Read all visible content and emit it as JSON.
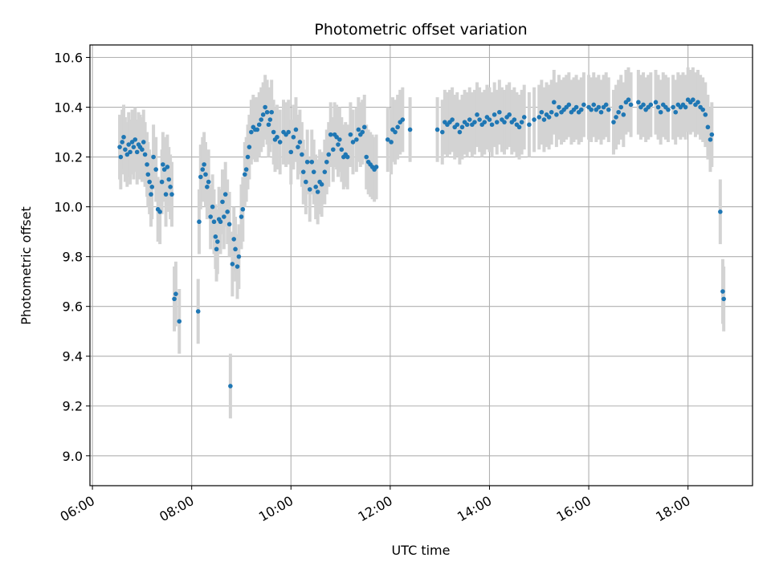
{
  "chart_data": {
    "type": "scatter",
    "title": "Photometric offset variation",
    "xlabel": "UTC time",
    "ylabel": "Photometric offset",
    "x_unit": "hours UTC",
    "xlim": [
      5.95,
      19.3
    ],
    "ylim": [
      8.88,
      10.65
    ],
    "grid": true,
    "legend": "none",
    "x_ticks": [
      {
        "value": 6,
        "label": "06:00"
      },
      {
        "value": 8,
        "label": "08:00"
      },
      {
        "value": 10,
        "label": "10:00"
      },
      {
        "value": 12,
        "label": "12:00"
      },
      {
        "value": 14,
        "label": "14:00"
      },
      {
        "value": 16,
        "label": "16:00"
      },
      {
        "value": 18,
        "label": "18:00"
      }
    ],
    "y_ticks": [
      {
        "value": 9.0,
        "label": "9.0"
      },
      {
        "value": 9.2,
        "label": "9.2"
      },
      {
        "value": 9.4,
        "label": "9.4"
      },
      {
        "value": 9.6,
        "label": "9.6"
      },
      {
        "value": 9.8,
        "label": "9.8"
      },
      {
        "value": 10.0,
        "label": "10.0"
      },
      {
        "value": 10.2,
        "label": "10.2"
      },
      {
        "value": 10.4,
        "label": "10.4"
      },
      {
        "value": 10.6,
        "label": "10.6"
      }
    ],
    "colors": {
      "points": "#1f77b4",
      "errorbars": "#d3d3d3",
      "grid": "#b0b0b0"
    },
    "series": [
      {
        "error": 0.13,
        "points": [
          [
            6.55,
            10.24
          ],
          [
            6.57,
            10.2
          ],
          [
            6.6,
            10.26
          ],
          [
            6.63,
            10.28
          ],
          [
            6.66,
            10.23
          ],
          [
            6.7,
            10.21
          ],
          [
            6.73,
            10.25
          ],
          [
            6.76,
            10.22
          ],
          [
            6.8,
            10.26
          ],
          [
            6.83,
            10.24
          ],
          [
            6.86,
            10.27
          ],
          [
            6.9,
            10.22
          ],
          [
            6.93,
            10.25
          ],
          [
            6.96,
            10.24
          ],
          [
            7.0,
            10.23
          ],
          [
            7.03,
            10.26
          ],
          [
            7.06,
            10.21
          ],
          [
            7.1,
            10.17
          ],
          [
            7.12,
            10.13
          ],
          [
            7.15,
            10.1
          ],
          [
            7.18,
            10.05
          ],
          [
            7.2,
            10.08
          ],
          [
            7.23,
            10.2
          ],
          [
            7.28,
            10.15
          ],
          [
            7.32,
            9.99
          ],
          [
            7.36,
            9.98
          ],
          [
            7.4,
            10.1
          ],
          [
            7.42,
            10.17
          ],
          [
            7.45,
            10.15
          ],
          [
            7.48,
            10.05
          ],
          [
            7.51,
            10.16
          ],
          [
            7.54,
            10.11
          ],
          [
            7.57,
            10.08
          ],
          [
            7.6,
            10.05
          ],
          [
            7.65,
            9.63
          ],
          [
            7.68,
            9.65
          ],
          [
            7.75,
            9.54
          ],
          [
            8.13,
            9.58
          ],
          [
            8.15,
            9.94
          ],
          [
            8.18,
            10.12
          ],
          [
            8.22,
            10.15
          ],
          [
            8.25,
            10.17
          ],
          [
            8.28,
            10.13
          ],
          [
            8.31,
            10.08
          ],
          [
            8.34,
            10.1
          ],
          [
            8.38,
            9.96
          ],
          [
            8.42,
            10.0
          ],
          [
            8.45,
            9.94
          ],
          [
            8.48,
            9.88
          ],
          [
            8.5,
            9.83
          ],
          [
            8.52,
            9.86
          ],
          [
            8.55,
            9.95
          ],
          [
            8.58,
            9.94
          ],
          [
            8.62,
            10.02
          ],
          [
            8.65,
            9.96
          ],
          [
            8.68,
            10.05
          ],
          [
            8.72,
            9.98
          ],
          [
            8.76,
            9.93
          ],
          [
            8.78,
            9.28
          ],
          [
            8.82,
            9.77
          ],
          [
            8.85,
            9.87
          ],
          [
            8.88,
            9.83
          ],
          [
            8.92,
            9.76
          ],
          [
            8.95,
            9.8
          ],
          [
            9.0,
            9.96
          ],
          [
            9.03,
            9.99
          ],
          [
            9.07,
            10.13
          ],
          [
            9.1,
            10.15
          ],
          [
            9.13,
            10.2
          ],
          [
            9.16,
            10.24
          ],
          [
            9.2,
            10.3
          ],
          [
            9.24,
            10.32
          ],
          [
            9.28,
            10.31
          ],
          [
            9.32,
            10.31
          ],
          [
            9.36,
            10.33
          ],
          [
            9.4,
            10.35
          ],
          [
            9.44,
            10.37
          ],
          [
            9.48,
            10.4
          ],
          [
            9.52,
            10.38
          ],
          [
            9.55,
            10.33
          ],
          [
            9.58,
            10.35
          ],
          [
            9.61,
            10.38
          ],
          [
            9.65,
            10.3
          ],
          [
            9.68,
            10.27
          ],
          [
            9.72,
            10.28
          ],
          [
            9.78,
            10.26
          ],
          [
            9.85,
            10.3
          ],
          [
            9.9,
            10.29
          ],
          [
            9.95,
            10.3
          ],
          [
            10.0,
            10.22
          ],
          [
            10.05,
            10.28
          ],
          [
            10.1,
            10.31
          ],
          [
            10.14,
            10.24
          ],
          [
            10.18,
            10.26
          ],
          [
            10.22,
            10.21
          ],
          [
            10.25,
            10.14
          ],
          [
            10.3,
            10.1
          ],
          [
            10.33,
            10.18
          ],
          [
            10.38,
            10.07
          ],
          [
            10.42,
            10.18
          ],
          [
            10.46,
            10.14
          ],
          [
            10.5,
            10.08
          ],
          [
            10.54,
            10.06
          ],
          [
            10.58,
            10.1
          ],
          [
            10.62,
            10.09
          ],
          [
            10.68,
            10.14
          ],
          [
            10.72,
            10.18
          ],
          [
            10.76,
            10.21
          ],
          [
            10.8,
            10.29
          ],
          [
            10.85,
            10.23
          ],
          [
            10.88,
            10.29
          ],
          [
            10.92,
            10.28
          ],
          [
            10.95,
            10.25
          ],
          [
            10.98,
            10.27
          ],
          [
            11.02,
            10.23
          ],
          [
            11.06,
            10.2
          ],
          [
            11.1,
            10.21
          ],
          [
            11.14,
            10.2
          ],
          [
            11.2,
            10.29
          ],
          [
            11.25,
            10.26
          ],
          [
            11.32,
            10.27
          ],
          [
            11.36,
            10.31
          ],
          [
            11.4,
            10.29
          ],
          [
            11.44,
            10.3
          ],
          [
            11.48,
            10.32
          ],
          [
            11.52,
            10.2
          ],
          [
            11.56,
            10.18
          ],
          [
            11.6,
            10.17
          ],
          [
            11.64,
            10.16
          ],
          [
            11.68,
            10.15
          ],
          [
            11.72,
            10.16
          ],
          [
            11.95,
            10.27
          ],
          [
            12.02,
            10.26
          ],
          [
            12.05,
            10.31
          ],
          [
            12.1,
            10.3
          ],
          [
            12.15,
            10.32
          ],
          [
            12.2,
            10.34
          ],
          [
            12.25,
            10.35
          ],
          [
            12.4,
            10.31
          ],
          [
            12.95,
            10.31
          ],
          [
            13.05,
            10.3
          ],
          [
            13.1,
            10.34
          ],
          [
            13.15,
            10.33
          ],
          [
            13.2,
            10.34
          ],
          [
            13.25,
            10.35
          ],
          [
            13.3,
            10.32
          ],
          [
            13.35,
            10.33
          ],
          [
            13.4,
            10.3
          ],
          [
            13.45,
            10.32
          ],
          [
            13.5,
            10.34
          ],
          [
            13.55,
            10.33
          ],
          [
            13.6,
            10.35
          ],
          [
            13.65,
            10.33
          ],
          [
            13.7,
            10.34
          ],
          [
            13.75,
            10.37
          ],
          [
            13.8,
            10.35
          ],
          [
            13.85,
            10.33
          ],
          [
            13.9,
            10.34
          ],
          [
            13.95,
            10.36
          ],
          [
            14.0,
            10.35
          ],
          [
            14.05,
            10.33
          ],
          [
            14.1,
            10.37
          ],
          [
            14.15,
            10.34
          ],
          [
            14.2,
            10.38
          ],
          [
            14.25,
            10.35
          ],
          [
            14.3,
            10.34
          ],
          [
            14.35,
            10.36
          ],
          [
            14.4,
            10.37
          ],
          [
            14.45,
            10.34
          ],
          [
            14.5,
            10.35
          ],
          [
            14.55,
            10.33
          ],
          [
            14.6,
            10.32
          ],
          [
            14.65,
            10.34
          ],
          [
            14.7,
            10.36
          ],
          [
            14.8,
            10.33
          ],
          [
            14.9,
            10.35
          ],
          [
            15.0,
            10.36
          ],
          [
            15.05,
            10.38
          ],
          [
            15.1,
            10.35
          ],
          [
            15.15,
            10.37
          ],
          [
            15.2,
            10.36
          ],
          [
            15.25,
            10.38
          ],
          [
            15.3,
            10.42
          ],
          [
            15.35,
            10.37
          ],
          [
            15.4,
            10.4
          ],
          [
            15.45,
            10.38
          ],
          [
            15.5,
            10.39
          ],
          [
            15.55,
            10.4
          ],
          [
            15.6,
            10.41
          ],
          [
            15.65,
            10.38
          ],
          [
            15.7,
            10.39
          ],
          [
            15.75,
            10.4
          ],
          [
            15.8,
            10.38
          ],
          [
            15.85,
            10.39
          ],
          [
            15.9,
            10.41
          ],
          [
            16.0,
            10.4
          ],
          [
            16.05,
            10.39
          ],
          [
            16.1,
            10.41
          ],
          [
            16.15,
            10.39
          ],
          [
            16.2,
            10.4
          ],
          [
            16.25,
            10.38
          ],
          [
            16.3,
            10.4
          ],
          [
            16.35,
            10.41
          ],
          [
            16.4,
            10.39
          ],
          [
            16.5,
            10.34
          ],
          [
            16.55,
            10.36
          ],
          [
            16.6,
            10.38
          ],
          [
            16.65,
            10.4
          ],
          [
            16.7,
            10.37
          ],
          [
            16.75,
            10.42
          ],
          [
            16.8,
            10.43
          ],
          [
            16.85,
            10.41
          ],
          [
            17.0,
            10.42
          ],
          [
            17.05,
            10.4
          ],
          [
            17.1,
            10.41
          ],
          [
            17.15,
            10.39
          ],
          [
            17.2,
            10.4
          ],
          [
            17.25,
            10.41
          ],
          [
            17.35,
            10.42
          ],
          [
            17.4,
            10.4
          ],
          [
            17.45,
            10.38
          ],
          [
            17.5,
            10.41
          ],
          [
            17.55,
            10.4
          ],
          [
            17.6,
            10.39
          ],
          [
            17.7,
            10.4
          ],
          [
            17.75,
            10.38
          ],
          [
            17.8,
            10.41
          ],
          [
            17.85,
            10.4
          ],
          [
            17.9,
            10.41
          ],
          [
            17.95,
            10.4
          ],
          [
            18.0,
            10.43
          ],
          [
            18.05,
            10.42
          ],
          [
            18.1,
            10.43
          ],
          [
            18.15,
            10.41
          ],
          [
            18.2,
            10.42
          ],
          [
            18.25,
            10.4
          ],
          [
            18.3,
            10.39
          ],
          [
            18.35,
            10.37
          ],
          [
            18.4,
            10.32
          ],
          [
            18.45,
            10.27
          ],
          [
            18.48,
            10.29
          ],
          [
            18.65,
            9.98
          ],
          [
            18.7,
            9.66
          ],
          [
            18.72,
            9.63
          ]
        ]
      }
    ]
  }
}
